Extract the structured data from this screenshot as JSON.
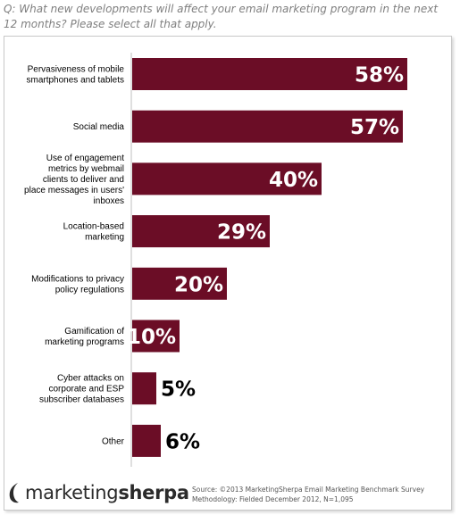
{
  "question": "Q: What new developments will affect your email marketing program in the next 12 months? Please select all that apply.",
  "chart_data": {
    "type": "bar",
    "orientation": "horizontal",
    "categories": [
      [
        "Pervasiveness  of mobile",
        "smartphones and tablets"
      ],
      [
        "Social media"
      ],
      [
        "Use of engagement",
        "metrics by webmail",
        "clients to deliver and",
        "place messages in users'",
        "inboxes"
      ],
      [
        "Location-based",
        "marketing"
      ],
      [
        "Modifications to privacy",
        "policy regulations"
      ],
      [
        "Gamification of",
        "marketing programs"
      ],
      [
        "Cyber attacks on",
        "corporate and ESP",
        "subscriber databases"
      ],
      [
        "Other"
      ]
    ],
    "values": [
      58,
      57,
      40,
      29,
      20,
      10,
      5,
      6
    ],
    "value_labels": [
      "58%",
      "57%",
      "40%",
      "29%",
      "20%",
      "10%",
      "5%",
      "6%"
    ],
    "xlim": [
      0,
      60
    ],
    "grid": false,
    "legend": "none"
  },
  "colors": {
    "bar": "#6b0d26",
    "label_inside": "#ffffff",
    "label_outside": "#000000"
  },
  "logo": {
    "name_part1": "marketing",
    "name_part2": "sherpa",
    "icon": "sherpa-logo-icon"
  },
  "source": {
    "line1": "Source:  ©2013 MarketingSherpa Email Marketing Benchmark Survey",
    "line2": "Methodology: Fielded December 2012, N=1,095"
  }
}
